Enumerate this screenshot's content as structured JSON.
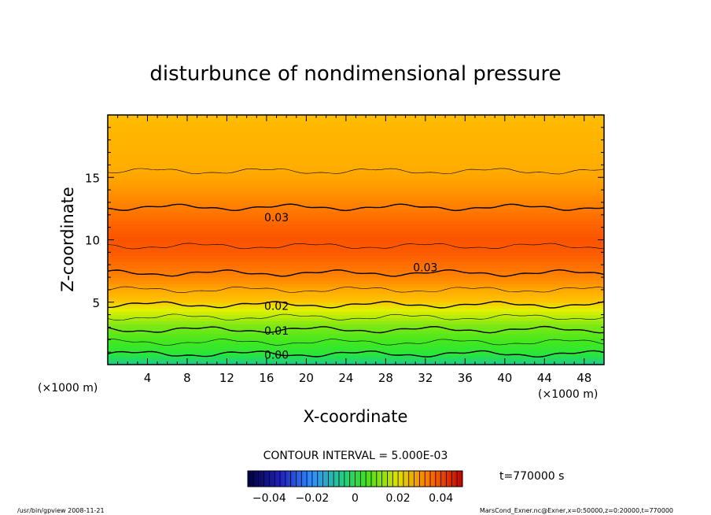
{
  "chart_data": {
    "type": "heatmap",
    "title": "disturbunce of nondimensional pressure",
    "xlabel": "X-coordinate",
    "ylabel": "Z-coordinate",
    "x_unit": "(×1000 m)",
    "z_unit": "(×1000 m)",
    "xlim": [
      0,
      50
    ],
    "ylim": [
      0,
      20
    ],
    "x_ticks": [
      4,
      8,
      12,
      16,
      20,
      24,
      28,
      32,
      36,
      40,
      44,
      48
    ],
    "y_ticks": [
      5,
      10,
      15
    ],
    "contour_interval_text": "CONTOUR INTERVAL = 5.000E-03",
    "contour_labels": [
      {
        "text": "0.03",
        "x": 17,
        "z": 11.8
      },
      {
        "text": "0.03",
        "x": 32,
        "z": 7.8
      },
      {
        "text": "0.02",
        "x": 17,
        "z": 4.7
      },
      {
        "text": "0.01",
        "x": 17,
        "z": 2.7
      },
      {
        "text": "0.00",
        "x": 17,
        "z": 0.8
      }
    ],
    "profile": {
      "z": [
        0,
        1,
        2,
        3,
        4,
        5,
        6,
        7,
        8,
        9,
        10,
        11,
        12,
        13,
        14,
        15,
        16,
        17,
        18,
        19,
        20
      ],
      "value": [
        -0.006,
        0.001,
        0.006,
        0.011,
        0.016,
        0.021,
        0.025,
        0.029,
        0.032,
        0.0345,
        0.0355,
        0.034,
        0.0315,
        0.029,
        0.027,
        0.0255,
        0.0245,
        0.024,
        0.0235,
        0.023,
        0.022
      ]
    },
    "colorbar": {
      "min": -0.05,
      "max": 0.05,
      "tick_values": [
        -0.04,
        -0.02,
        0,
        0.02,
        0.04
      ],
      "tick_labels": [
        "−0.04",
        "−0.02",
        "0",
        "0.02",
        "0.04"
      ]
    },
    "time_label": "t=770000 s",
    "footer_left": "/usr/bin/gpview   2008-11-21",
    "footer_right": "MarsCond_Exner.nc@Exner,x=0:50000,z=0:20000,t=770000"
  }
}
